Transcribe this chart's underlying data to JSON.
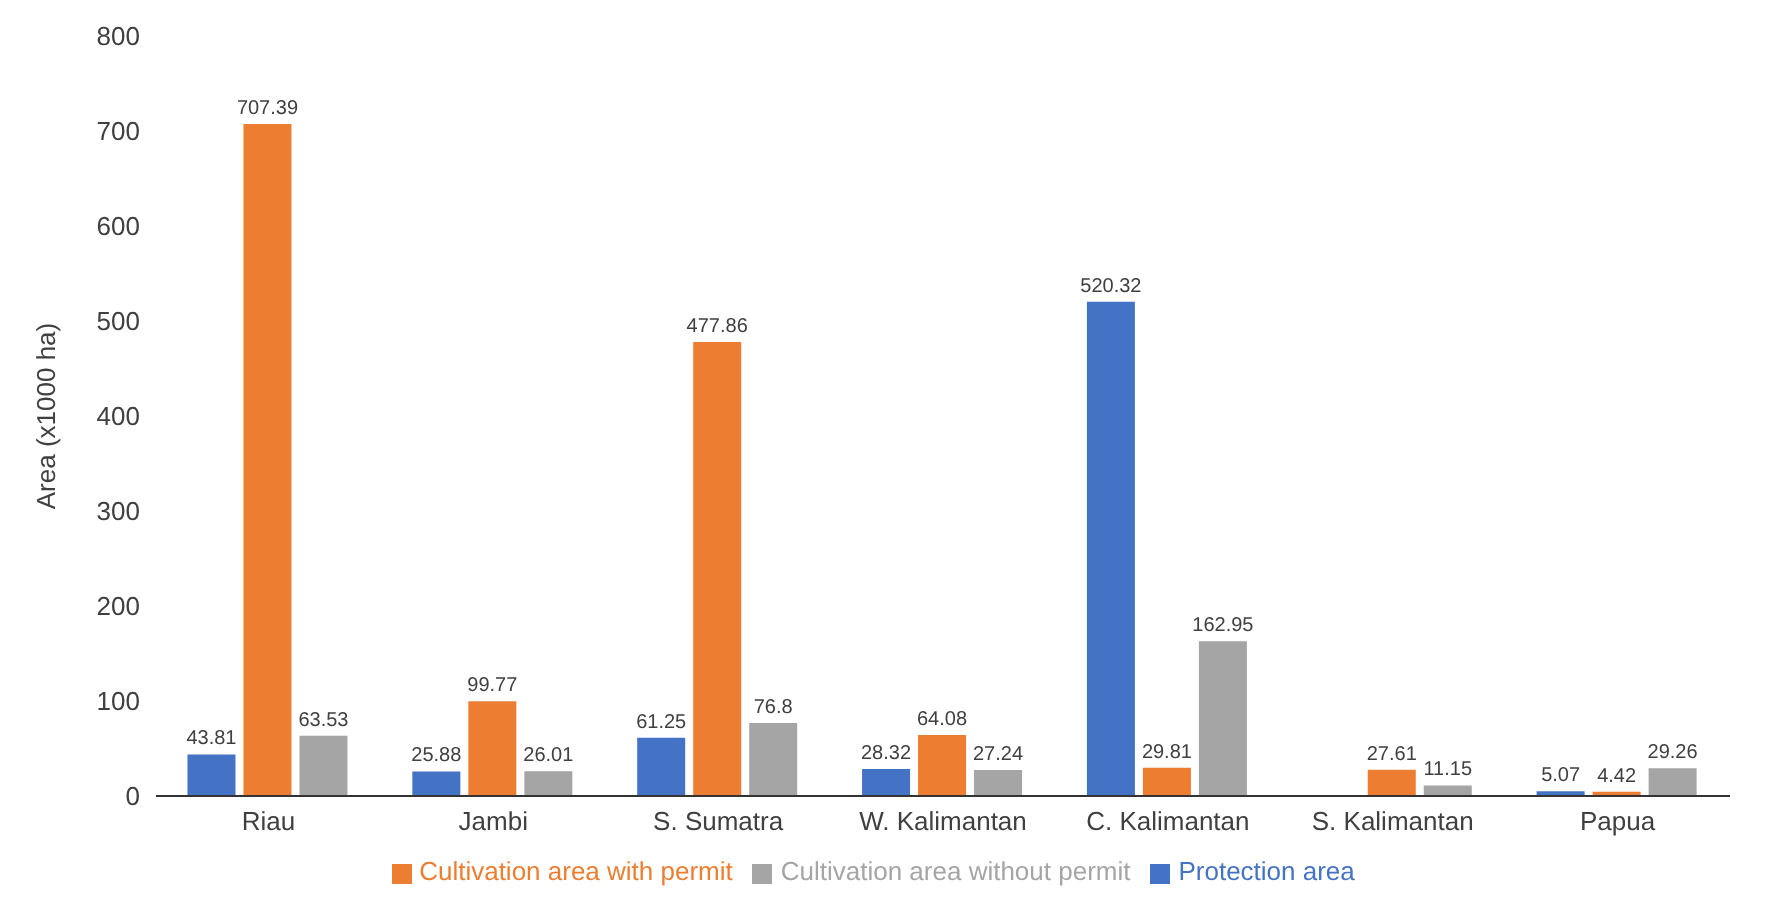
{
  "chart_data": {
    "type": "bar",
    "ylabel": "Area (x1000 ha)",
    "categories": [
      "Riau",
      "Jambi",
      "S. Sumatra",
      "W. Kalimantan",
      "C. Kalimantan",
      "S. Kalimantan",
      "Papua"
    ],
    "series": [
      {
        "name": "Protection area",
        "color": "#4472c4",
        "values": [
          43.81,
          25.88,
          61.25,
          28.32,
          520.32,
          null,
          5.07
        ]
      },
      {
        "name": "Cultivation area with permit",
        "color": "#ed7d31",
        "values": [
          707.39,
          99.77,
          477.86,
          64.08,
          29.81,
          27.61,
          4.42
        ]
      },
      {
        "name": "Cultivation area without permit",
        "color": "#a5a5a5",
        "values": [
          63.53,
          26.01,
          76.8,
          27.24,
          162.95,
          11.15,
          29.26
        ]
      }
    ],
    "ylim": [
      0,
      800
    ],
    "yticks": [
      0,
      100,
      200,
      300,
      400,
      500,
      600,
      700,
      800
    ],
    "data_labels": true,
    "legend": "bottom",
    "grid": false
  }
}
